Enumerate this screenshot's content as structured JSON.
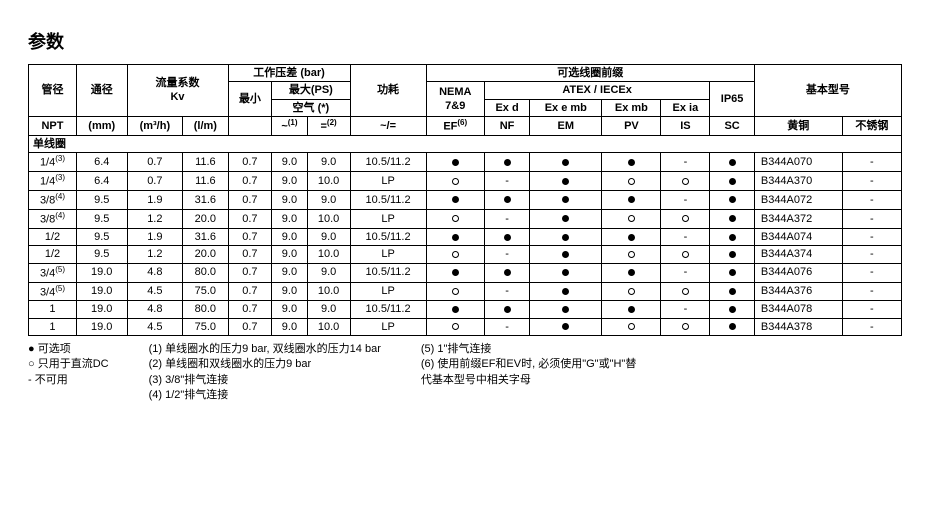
{
  "title": "参数",
  "headers": {
    "pipe": "管径",
    "bore": "通径",
    "flow": "流量系数<br>Kv",
    "pressure": "工作压差 (bar)",
    "min": "最小",
    "max": "最大(PS)",
    "air": "空气 (*)",
    "power": "功耗",
    "coil": "可选线圈前缀",
    "nema": "NEMA<br>7&9",
    "atex": "ATEX / IECEx",
    "ip65": "IP65",
    "model": "基本型号",
    "npt": "NPT",
    "mm": "(mm)",
    "m3h": "(m³/h)",
    "lm": "(l/m)",
    "ac": "~<sup>(1)</sup>",
    "dc": "=<sup>(2)</sup>",
    "acdc": "~/=",
    "ef": "EF<sup>(6)</sup>",
    "exd": "Ex d",
    "exemb": "Ex e mb",
    "exmb": "Ex mb",
    "exia": "Ex ia",
    "nf": "NF",
    "em": "EM",
    "pv": "PV",
    "is": "IS",
    "sc": "SC",
    "brass": "黄铜",
    "ss": "不锈钢"
  },
  "section": "单线圈",
  "rows": [
    {
      "npt": "1/4<sup>(3)</sup>",
      "mm": "6.4",
      "m3h": "0.7",
      "lm": "11.6",
      "min": "0.7",
      "ac": "9.0",
      "dc": "9.0",
      "pw": "10.5/11.2",
      "ef": "f",
      "nf": "f",
      "em": "f",
      "pv": "f",
      "is": "-",
      "sc": "f",
      "brass": "B344A070",
      "ss": "-"
    },
    {
      "npt": "1/4<sup>(3)</sup>",
      "mm": "6.4",
      "m3h": "0.7",
      "lm": "11.6",
      "min": "0.7",
      "ac": "9.0",
      "dc": "10.0",
      "pw": "LP",
      "ef": "o",
      "nf": "-",
      "em": "f",
      "pv": "o",
      "is": "o",
      "sc": "f",
      "brass": "B344A370",
      "ss": "-"
    },
    {
      "npt": "3/8<sup>(4)</sup>",
      "mm": "9.5",
      "m3h": "1.9",
      "lm": "31.6",
      "min": "0.7",
      "ac": "9.0",
      "dc": "9.0",
      "pw": "10.5/11.2",
      "ef": "f",
      "nf": "f",
      "em": "f",
      "pv": "f",
      "is": "-",
      "sc": "f",
      "brass": "B344A072",
      "ss": "-"
    },
    {
      "npt": "3/8<sup>(4)</sup>",
      "mm": "9.5",
      "m3h": "1.2",
      "lm": "20.0",
      "min": "0.7",
      "ac": "9.0",
      "dc": "10.0",
      "pw": "LP",
      "ef": "o",
      "nf": "-",
      "em": "f",
      "pv": "o",
      "is": "o",
      "sc": "f",
      "brass": "B344A372",
      "ss": "-"
    },
    {
      "npt": "1/2",
      "mm": "9.5",
      "m3h": "1.9",
      "lm": "31.6",
      "min": "0.7",
      "ac": "9.0",
      "dc": "9.0",
      "pw": "10.5/11.2",
      "ef": "f",
      "nf": "f",
      "em": "f",
      "pv": "f",
      "is": "-",
      "sc": "f",
      "brass": "B344A074",
      "ss": "-"
    },
    {
      "npt": "1/2",
      "mm": "9.5",
      "m3h": "1.2",
      "lm": "20.0",
      "min": "0.7",
      "ac": "9.0",
      "dc": "10.0",
      "pw": "LP",
      "ef": "o",
      "nf": "-",
      "em": "f",
      "pv": "o",
      "is": "o",
      "sc": "f",
      "brass": "B344A374",
      "ss": "-"
    },
    {
      "npt": "3/4<sup>(5)</sup>",
      "mm": "19.0",
      "m3h": "4.8",
      "lm": "80.0",
      "min": "0.7",
      "ac": "9.0",
      "dc": "9.0",
      "pw": "10.5/11.2",
      "ef": "f",
      "nf": "f",
      "em": "f",
      "pv": "f",
      "is": "-",
      "sc": "f",
      "brass": "B344A076",
      "ss": "-"
    },
    {
      "npt": "3/4<sup>(5)</sup>",
      "mm": "19.0",
      "m3h": "4.5",
      "lm": "75.0",
      "min": "0.7",
      "ac": "9.0",
      "dc": "10.0",
      "pw": "LP",
      "ef": "o",
      "nf": "-",
      "em": "f",
      "pv": "o",
      "is": "o",
      "sc": "f",
      "brass": "B344A376",
      "ss": "-"
    },
    {
      "npt": "1",
      "mm": "19.0",
      "m3h": "4.8",
      "lm": "80.0",
      "min": "0.7",
      "ac": "9.0",
      "dc": "9.0",
      "pw": "10.5/11.2",
      "ef": "f",
      "nf": "f",
      "em": "f",
      "pv": "f",
      "is": "-",
      "sc": "f",
      "brass": "B344A078",
      "ss": "-"
    },
    {
      "npt": "1",
      "mm": "19.0",
      "m3h": "4.5",
      "lm": "75.0",
      "min": "0.7",
      "ac": "9.0",
      "dc": "10.0",
      "pw": "LP",
      "ef": "o",
      "nf": "-",
      "em": "f",
      "pv": "o",
      "is": "o",
      "sc": "f",
      "brass": "B344A378",
      "ss": "-"
    }
  ],
  "legend": {
    "col1": [
      "● 可选项",
      "○ 只用于直流DC",
      "-  不可用"
    ],
    "col2": [
      "(1) 单线圈水的压力9 bar, 双线圈水的压力14 bar",
      "(2) 单线圈和双线圈水的压力9 bar",
      "(3) 3/8\"排气连接",
      "(4) 1/2\"排气连接"
    ],
    "col3": [
      "(5) 1\"排气连接",
      "(6) 使用前缀EF和EV时, 必须使用\"G\"或\"H\"替",
      "     代基本型号中相关字母"
    ]
  }
}
